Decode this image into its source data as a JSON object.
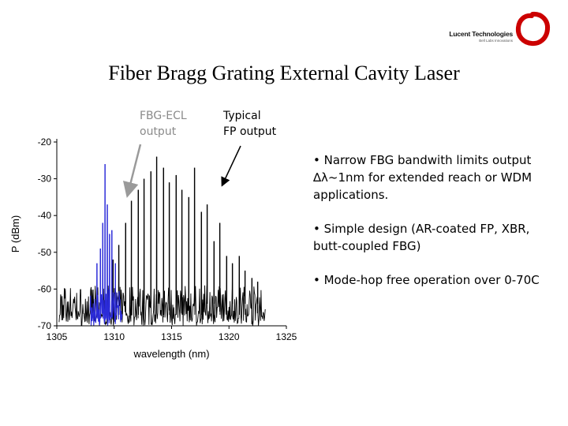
{
  "logo": {
    "name": "Lucent Technologies",
    "tagline": "Bell Labs Innovations",
    "ring_color": "#cc0000"
  },
  "slide": {
    "title": "Fiber Bragg Grating External Cavity Laser"
  },
  "annotations": {
    "fbg": [
      "FBG-ECL",
      "output"
    ],
    "fp": [
      "Typical",
      "FP output"
    ]
  },
  "bullets": [
    "• Narrow FBG bandwith limits output ∆λ~1nm for extended reach or WDM applications.",
    "• Simple design (AR-coated FP, XBR, butt-coupled FBG)",
    "• Mode-hop free operation over 0-70C"
  ],
  "chart_data": {
    "type": "line",
    "xlabel": "wavelength (nm)",
    "ylabel": "P (dBm)",
    "xlim": [
      1305,
      1325
    ],
    "ylim": [
      -70,
      -20
    ],
    "xticks": [
      1305,
      1310,
      1315,
      1320,
      1325
    ],
    "yticks": [
      -20,
      -30,
      -40,
      -50,
      -60,
      -70
    ],
    "grid": false,
    "series": [
      {
        "color": "#000000",
        "noise_floor_dBm": -64,
        "mode_peaks": [
          {
            "x": 1309.9,
            "y": -52
          },
          {
            "x": 1310.4,
            "y": -48
          },
          {
            "x": 1311.0,
            "y": -42
          },
          {
            "x": 1311.5,
            "y": -36
          },
          {
            "x": 1312.1,
            "y": -33
          },
          {
            "x": 1312.6,
            "y": -30
          },
          {
            "x": 1313.2,
            "y": -28
          },
          {
            "x": 1313.7,
            "y": -24
          },
          {
            "x": 1314.3,
            "y": -27
          },
          {
            "x": 1314.8,
            "y": -31
          },
          {
            "x": 1315.4,
            "y": -29
          },
          {
            "x": 1315.9,
            "y": -33
          },
          {
            "x": 1316.5,
            "y": -35
          },
          {
            "x": 1317.0,
            "y": -27
          },
          {
            "x": 1317.6,
            "y": -39
          },
          {
            "x": 1318.1,
            "y": -37
          },
          {
            "x": 1318.7,
            "y": -47
          },
          {
            "x": 1319.2,
            "y": -42
          },
          {
            "x": 1319.8,
            "y": -51
          },
          {
            "x": 1320.3,
            "y": -53
          },
          {
            "x": 1320.9,
            "y": -51
          },
          {
            "x": 1321.4,
            "y": -55
          },
          {
            "x": 1322.0,
            "y": -57
          },
          {
            "x": 1322.5,
            "y": -58
          }
        ]
      },
      {
        "color": "#2b2bd8",
        "noise_floor_dBm": -65,
        "mode_peaks": [
          {
            "x": 1308.5,
            "y": -53
          },
          {
            "x": 1308.8,
            "y": -49
          },
          {
            "x": 1309.0,
            "y": -42
          },
          {
            "x": 1309.2,
            "y": -26
          },
          {
            "x": 1309.4,
            "y": -37
          },
          {
            "x": 1309.6,
            "y": -45
          },
          {
            "x": 1309.8,
            "y": -44
          },
          {
            "x": 1310.1,
            "y": -53
          }
        ]
      }
    ]
  }
}
